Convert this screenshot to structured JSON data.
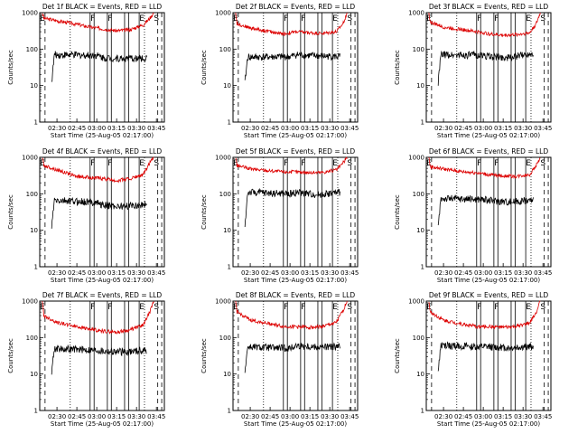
{
  "colors": {
    "events": "#000000",
    "lld": "#dd0000",
    "axes": "#000000"
  },
  "chart_data": [
    {
      "type": "line",
      "title": "Det 1f BLACK = Events, RED = LLD",
      "xlabel": "Start Time (25-Aug-05 02:17:00)",
      "ylabel": "Counts/sec",
      "yscale": "log",
      "ylim": [
        1,
        1000
      ],
      "x_tick_labels": [
        "02:30",
        "02:45",
        "03:00",
        "03:15",
        "03:30",
        "03:45"
      ],
      "y_tick_labels": [
        "1",
        "10",
        "100",
        "1000"
      ],
      "marker_labels": [
        "E",
        "F",
        "F",
        "E",
        "S"
      ],
      "series": [
        {
          "name": "LLD",
          "color": "red",
          "x": [
            "02:19",
            "02:20",
            "02:30",
            "02:45",
            "02:55",
            "03:05",
            "03:15",
            "03:25",
            "03:35",
            "03:40",
            "03:43"
          ],
          "y": [
            1000,
            700,
            600,
            480,
            400,
            360,
            320,
            340,
            460,
            700,
            1000
          ]
        },
        {
          "name": "Events",
          "color": "black",
          "x": [
            "02:26",
            "02:28",
            "03:00",
            "03:05",
            "03:20",
            "03:38"
          ],
          "y": [
            12,
            70,
            68,
            58,
            55,
            55
          ]
        }
      ]
    },
    {
      "type": "line",
      "title": "Det 2f BLACK = Events, RED = LLD",
      "xlabel": "Start Time (25-Aug-05 02:17:00)",
      "ylabel": "Counts/sec",
      "yscale": "log",
      "ylim": [
        1,
        1000
      ],
      "x_tick_labels": [
        "02:30",
        "02:45",
        "03:00",
        "03:15",
        "03:30",
        "03:45"
      ],
      "y_tick_labels": [
        "1",
        "10",
        "100",
        "1000"
      ],
      "marker_labels": [
        "E",
        "F",
        "F",
        "E",
        "S"
      ],
      "series": [
        {
          "name": "LLD",
          "color": "red",
          "x": [
            "02:19",
            "02:20",
            "02:30",
            "02:45",
            "02:55",
            "03:05",
            "03:15",
            "03:25",
            "03:35",
            "03:40",
            "03:43"
          ],
          "y": [
            1000,
            500,
            380,
            300,
            260,
            300,
            280,
            270,
            300,
            500,
            1000
          ]
        },
        {
          "name": "Events",
          "color": "black",
          "x": [
            "02:26",
            "02:28",
            "03:00",
            "03:05",
            "03:20",
            "03:38"
          ],
          "y": [
            12,
            60,
            62,
            70,
            65,
            62
          ]
        }
      ]
    },
    {
      "type": "line",
      "title": "Det 3f BLACK = Events, RED = LLD",
      "xlabel": "Start Time (25-Aug-05 02:17:00)",
      "ylabel": "Counts/sec",
      "yscale": "log",
      "ylim": [
        1,
        1000
      ],
      "x_tick_labels": [
        "02:30",
        "02:45",
        "03:00",
        "03:15",
        "03:30",
        "03:45"
      ],
      "y_tick_labels": [
        "1",
        "10",
        "100",
        "1000"
      ],
      "marker_labels": [
        "E",
        "F",
        "F",
        "E",
        "S"
      ],
      "series": [
        {
          "name": "LLD",
          "color": "red",
          "x": [
            "02:19",
            "02:20",
            "02:30",
            "02:45",
            "02:55",
            "03:05",
            "03:15",
            "03:25",
            "03:35",
            "03:40",
            "03:43"
          ],
          "y": [
            1000,
            550,
            400,
            340,
            300,
            260,
            240,
            250,
            280,
            500,
            1000
          ]
        },
        {
          "name": "Events",
          "color": "black",
          "x": [
            "02:26",
            "02:28",
            "03:00",
            "03:05",
            "03:20",
            "03:38"
          ],
          "y": [
            12,
            70,
            68,
            62,
            58,
            80
          ]
        }
      ]
    },
    {
      "type": "line",
      "title": "Det 4f BLACK = Events, RED = LLD",
      "xlabel": "Start Time (25-Aug-05 02:17:00)",
      "ylabel": "Counts/sec",
      "yscale": "log",
      "ylim": [
        1,
        1000
      ],
      "x_tick_labels": [
        "02:30",
        "02:45",
        "03:00",
        "03:15",
        "03:30",
        "03:45"
      ],
      "y_tick_labels": [
        "1",
        "10",
        "100",
        "1000"
      ],
      "marker_labels": [
        "E",
        "F",
        "F",
        "E",
        "S"
      ],
      "series": [
        {
          "name": "LLD",
          "color": "red",
          "x": [
            "02:19",
            "02:20",
            "02:30",
            "02:45",
            "02:55",
            "03:05",
            "03:15",
            "03:25",
            "03:35",
            "03:40",
            "03:43"
          ],
          "y": [
            1000,
            600,
            450,
            300,
            280,
            260,
            230,
            260,
            330,
            700,
            1000
          ]
        },
        {
          "name": "Events",
          "color": "black",
          "x": [
            "02:26",
            "02:28",
            "03:00",
            "03:05",
            "03:20",
            "03:38"
          ],
          "y": [
            12,
            65,
            58,
            48,
            45,
            52
          ]
        }
      ]
    },
    {
      "type": "line",
      "title": "Det 5f BLACK = Events, RED = LLD",
      "xlabel": "Start Time (25-Aug-05 02:17:00)",
      "ylabel": "Counts/sec",
      "yscale": "log",
      "ylim": [
        1,
        1000
      ],
      "x_tick_labels": [
        "02:30",
        "02:45",
        "03:00",
        "03:15",
        "03:30",
        "03:45"
      ],
      "y_tick_labels": [
        "1",
        "10",
        "100",
        "1000"
      ],
      "marker_labels": [
        "E",
        "F",
        "F",
        "E",
        "S"
      ],
      "series": [
        {
          "name": "LLD",
          "color": "red",
          "x": [
            "02:19",
            "02:20",
            "02:30",
            "02:45",
            "02:55",
            "03:05",
            "03:15",
            "03:25",
            "03:35",
            "03:40",
            "03:43"
          ],
          "y": [
            1000,
            600,
            480,
            430,
            400,
            400,
            380,
            390,
            450,
            700,
            1000
          ]
        },
        {
          "name": "Events",
          "color": "black",
          "x": [
            "02:26",
            "02:28",
            "03:00",
            "03:05",
            "03:20",
            "03:38"
          ],
          "y": [
            12,
            110,
            100,
            110,
            95,
            110
          ]
        }
      ]
    },
    {
      "type": "line",
      "title": "Det 6f BLACK = Events, RED = LLD",
      "xlabel": "Start Time (25-Aug-05 02:17:00)",
      "ylabel": "Counts/sec",
      "yscale": "log",
      "ylim": [
        1,
        1000
      ],
      "x_tick_labels": [
        "02:30",
        "02:45",
        "03:00",
        "03:15",
        "03:30",
        "03:45"
      ],
      "y_tick_labels": [
        "1",
        "10",
        "100",
        "1000"
      ],
      "marker_labels": [
        "E",
        "F",
        "F",
        "E",
        "S"
      ],
      "series": [
        {
          "name": "LLD",
          "color": "red",
          "x": [
            "02:19",
            "02:20",
            "02:30",
            "02:45",
            "02:55",
            "03:05",
            "03:15",
            "03:25",
            "03:35",
            "03:40",
            "03:43"
          ],
          "y": [
            1000,
            550,
            480,
            400,
            380,
            330,
            310,
            300,
            340,
            600,
            1000
          ]
        },
        {
          "name": "Events",
          "color": "black",
          "x": [
            "02:26",
            "02:28",
            "03:00",
            "03:05",
            "03:20",
            "03:38"
          ],
          "y": [
            12,
            75,
            70,
            65,
            60,
            68
          ]
        }
      ]
    },
    {
      "type": "line",
      "title": "Det 7f BLACK = Events, RED = LLD",
      "xlabel": "Start Time (25-Aug-05 02:17:00)",
      "ylabel": "Counts/sec",
      "yscale": "log",
      "ylim": [
        1,
        1000
      ],
      "x_tick_labels": [
        "02:30",
        "02:45",
        "03:00",
        "03:15",
        "03:30",
        "03:45"
      ],
      "y_tick_labels": [
        "1",
        "10",
        "100",
        "1000"
      ],
      "marker_labels": [
        "E",
        "F",
        "F",
        "E",
        "S"
      ],
      "series": [
        {
          "name": "LLD",
          "color": "red",
          "x": [
            "02:19",
            "02:20",
            "02:30",
            "02:45",
            "02:55",
            "03:05",
            "03:15",
            "03:25",
            "03:35",
            "03:40",
            "03:43"
          ],
          "y": [
            1000,
            400,
            260,
            200,
            170,
            150,
            140,
            160,
            220,
            500,
            1000
          ]
        },
        {
          "name": "Events",
          "color": "black",
          "x": [
            "02:26",
            "02:28",
            "03:00",
            "03:05",
            "03:20",
            "03:38"
          ],
          "y": [
            12,
            50,
            45,
            42,
            40,
            45
          ]
        }
      ]
    },
    {
      "type": "line",
      "title": "Det 8f BLACK = Events, RED = LLD",
      "xlabel": "Start Time (25-Aug-05 02:17:00)",
      "ylabel": "Counts/sec",
      "yscale": "log",
      "ylim": [
        1,
        1000
      ],
      "x_tick_labels": [
        "02:30",
        "02:45",
        "03:00",
        "03:15",
        "03:30",
        "03:45"
      ],
      "y_tick_labels": [
        "1",
        "10",
        "100",
        "1000"
      ],
      "marker_labels": [
        "E",
        "F",
        "F",
        "E",
        "S"
      ],
      "series": [
        {
          "name": "LLD",
          "color": "red",
          "x": [
            "02:19",
            "02:20",
            "02:30",
            "02:45",
            "02:55",
            "03:05",
            "03:15",
            "03:25",
            "03:35",
            "03:40",
            "03:43"
          ],
          "y": [
            1000,
            500,
            300,
            240,
            200,
            200,
            190,
            200,
            260,
            550,
            1000
          ]
        },
        {
          "name": "Events",
          "color": "black",
          "x": [
            "02:26",
            "02:28",
            "03:00",
            "03:05",
            "03:20",
            "03:38"
          ],
          "y": [
            12,
            55,
            50,
            60,
            55,
            55
          ]
        }
      ]
    },
    {
      "type": "line",
      "title": "Det 9f BLACK = Events, RED = LLD",
      "xlabel": "Start Time (25-Aug-05 02:17:00)",
      "ylabel": "Counts/sec",
      "yscale": "log",
      "ylim": [
        1,
        1000
      ],
      "x_tick_labels": [
        "02:30",
        "02:45",
        "03:00",
        "03:15",
        "03:30",
        "03:45"
      ],
      "y_tick_labels": [
        "1",
        "10",
        "100",
        "1000"
      ],
      "marker_labels": [
        "E",
        "F",
        "F",
        "E",
        "S"
      ],
      "series": [
        {
          "name": "LLD",
          "color": "red",
          "x": [
            "02:19",
            "02:20",
            "02:30",
            "02:45",
            "02:55",
            "03:05",
            "03:15",
            "03:25",
            "03:35",
            "03:40",
            "03:43"
          ],
          "y": [
            1000,
            500,
            300,
            230,
            200,
            200,
            190,
            200,
            250,
            500,
            1000
          ]
        },
        {
          "name": "Events",
          "color": "black",
          "x": [
            "02:26",
            "02:28",
            "03:00",
            "03:05",
            "03:20",
            "03:38"
          ],
          "y": [
            12,
            60,
            55,
            55,
            52,
            58
          ]
        }
      ]
    }
  ]
}
